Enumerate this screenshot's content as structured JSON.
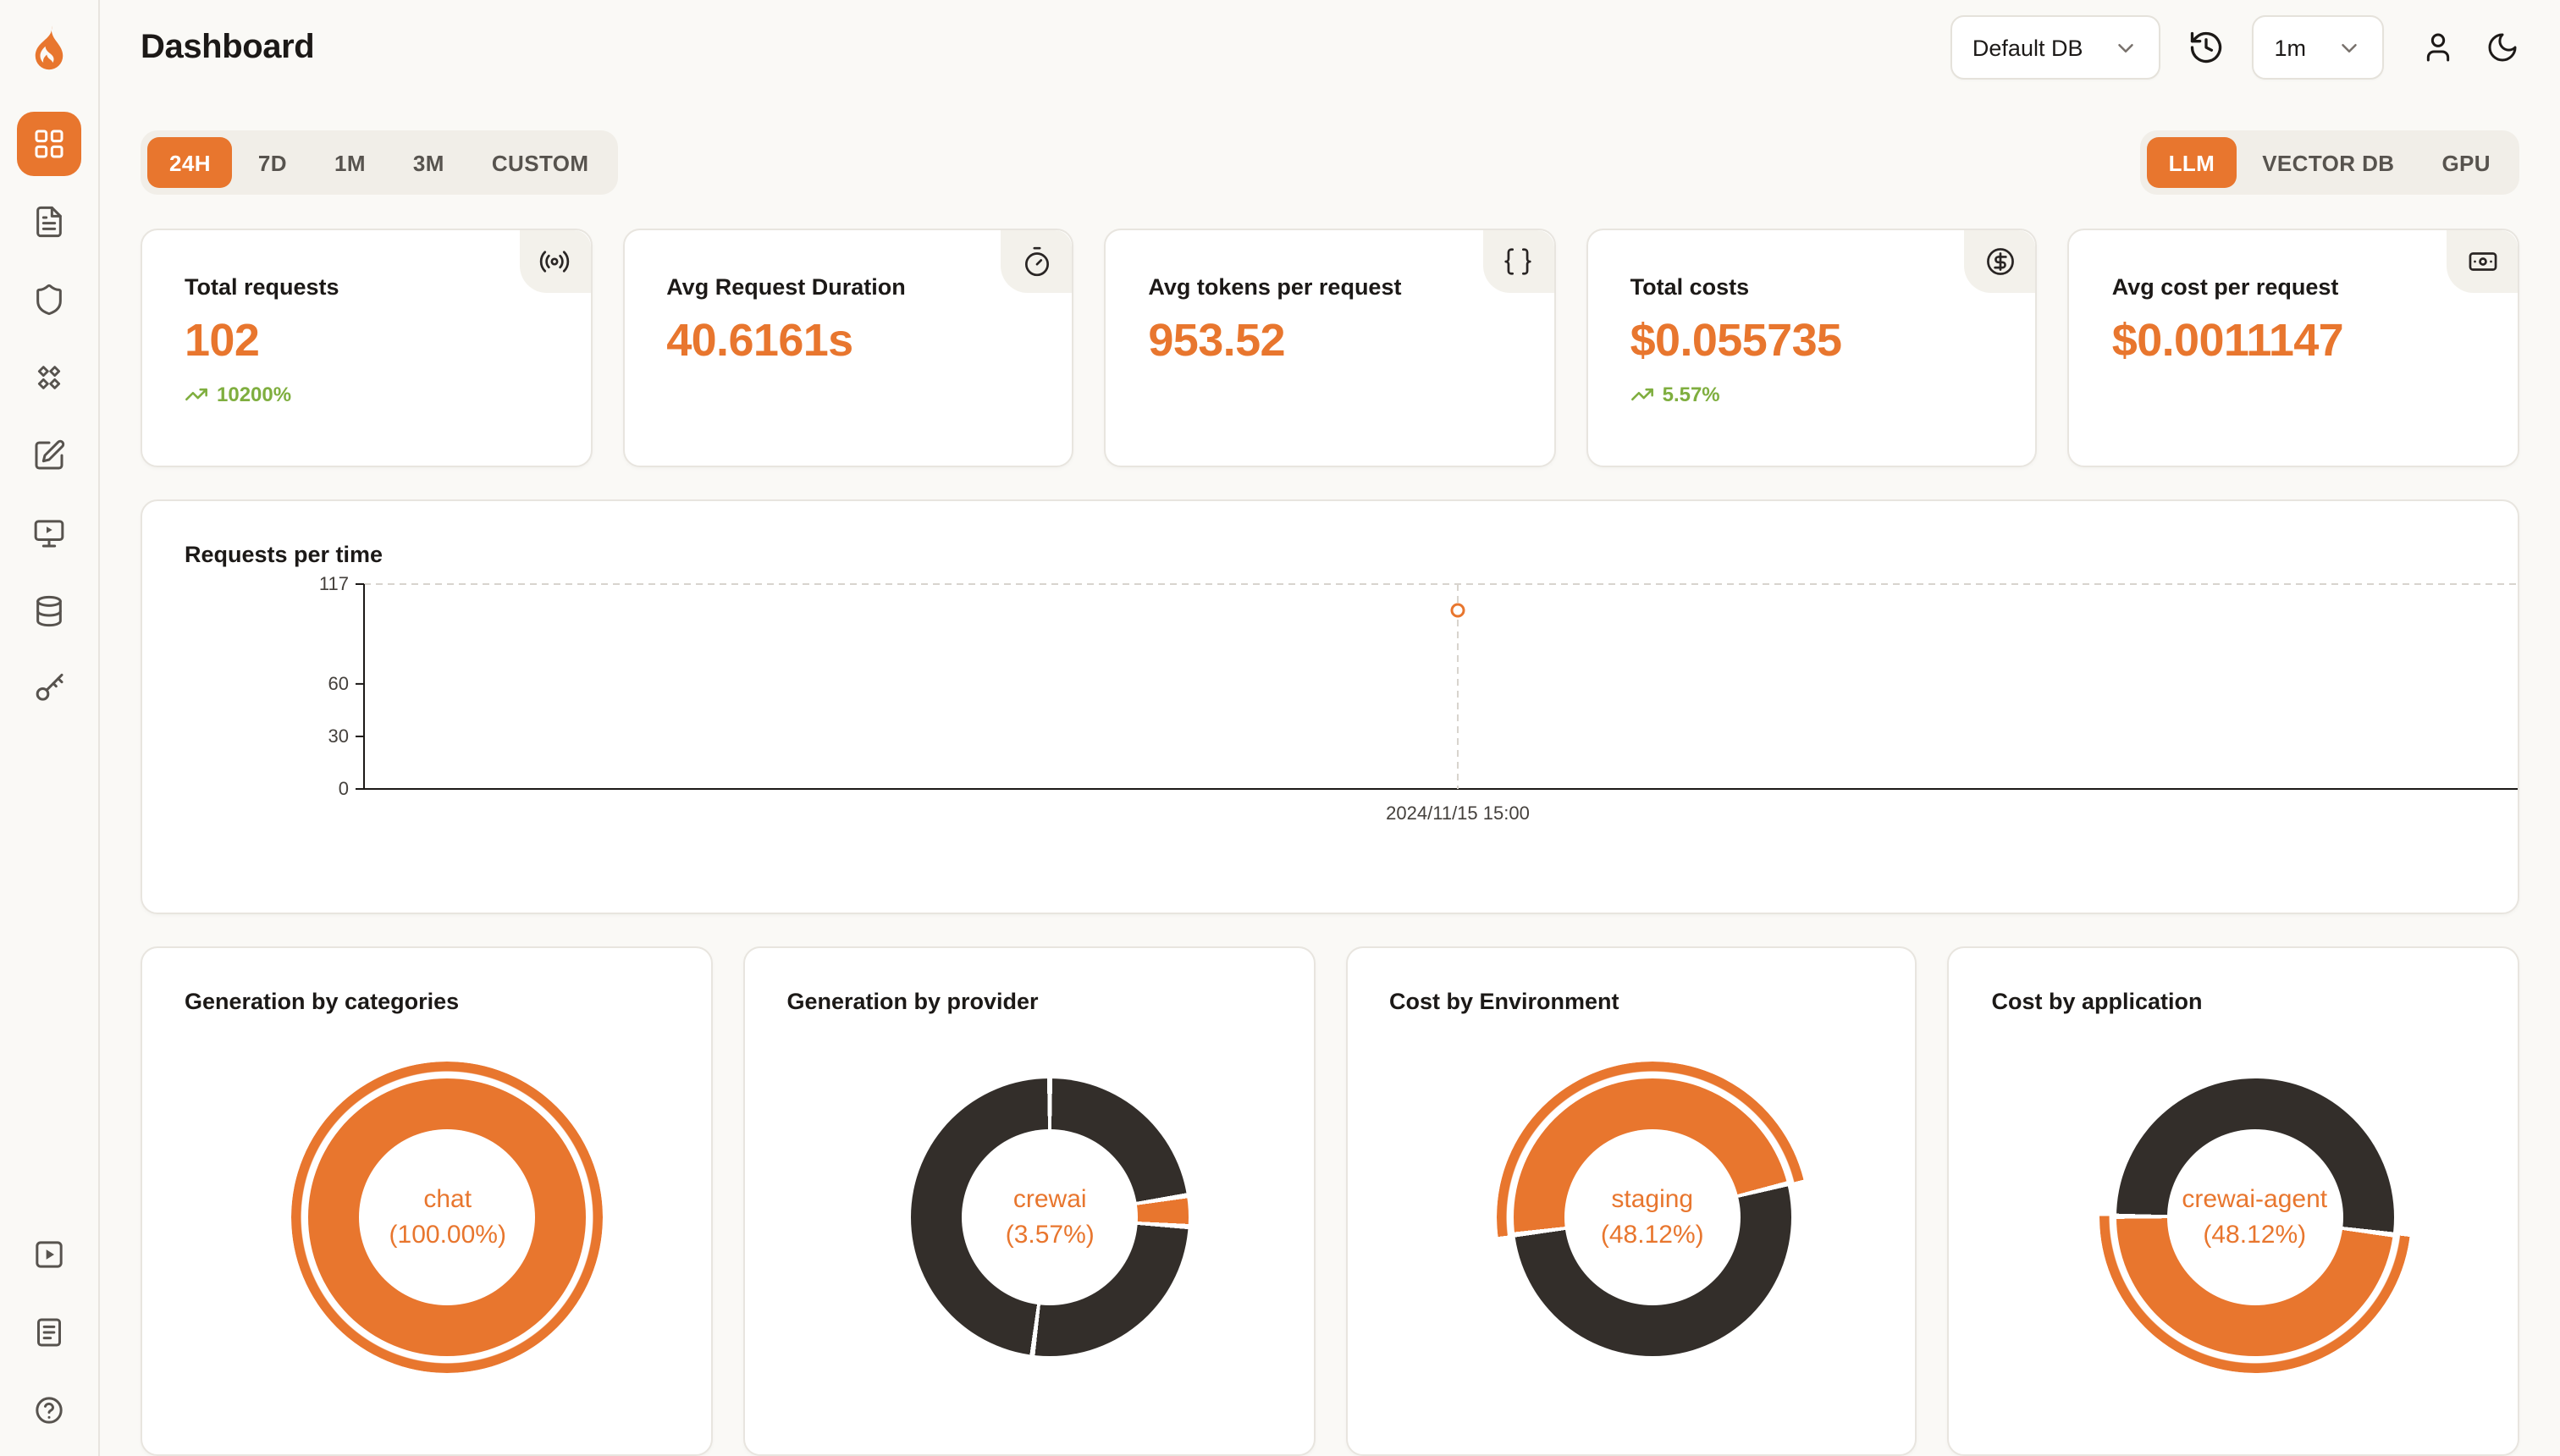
{
  "colors": {
    "accent": "#E8762E",
    "dark_segment": "#332E2A",
    "positive": "#7FAE3F",
    "axis": "#1C1917",
    "grid_dashed": "#D8D4CE",
    "muted_text": "#44403C"
  },
  "sidebar": {
    "items": [
      {
        "icon": "dashboard-icon",
        "active": true
      },
      {
        "icon": "requests-icon",
        "active": false
      },
      {
        "icon": "exceptions-icon",
        "active": false
      },
      {
        "icon": "vault-icon",
        "active": false
      },
      {
        "icon": "prompt-hub-icon",
        "active": false
      },
      {
        "icon": "openground-icon",
        "active": false
      },
      {
        "icon": "databases-icon",
        "active": false
      },
      {
        "icon": "api-keys-icon",
        "active": false
      }
    ],
    "footer_items": [
      {
        "icon": "getting-started-icon"
      },
      {
        "icon": "documentation-icon"
      },
      {
        "icon": "support-icon"
      }
    ]
  },
  "header": {
    "title": "Dashboard",
    "database_select": "Default DB",
    "interval_select": "1m"
  },
  "filters": {
    "time_ranges": [
      "24H",
      "7D",
      "1M",
      "3M",
      "CUSTOM"
    ],
    "active_time_range": "24H",
    "sources": [
      "LLM",
      "VECTOR DB",
      "GPU"
    ],
    "active_source": "LLM"
  },
  "stats": [
    {
      "label": "Total requests",
      "value": "102",
      "delta": "10200%",
      "icon": "radio-icon"
    },
    {
      "label": "Avg Request Duration",
      "value": "40.6161s",
      "icon": "timer-icon"
    },
    {
      "label": "Avg tokens per request",
      "value": "953.52",
      "icon": "braces-icon"
    },
    {
      "label": "Total costs",
      "value": "$0.055735",
      "delta": "5.57%",
      "icon": "circle-dollar-icon"
    },
    {
      "label": "Avg cost per request",
      "value": "$0.0011147",
      "icon": "banknote-icon"
    }
  ],
  "chart_data": [
    {
      "type": "line",
      "title": "Requests per time",
      "x": [
        "2024/11/15 15:00"
      ],
      "y": [
        102
      ],
      "ylim": [
        0,
        117
      ],
      "yticks": [
        0,
        30,
        60,
        117
      ],
      "grid": "dashed-frame",
      "point_style": "hollow-circle"
    },
    {
      "type": "pie",
      "title": "Generation by categories",
      "center": {
        "line1": "chat",
        "line2": "(100.00%)"
      },
      "rotation_pct": 0,
      "segments": [
        {
          "name": "chat",
          "pct": 100.0,
          "color": "#E8762E"
        }
      ],
      "highlight": {
        "start_pct": 0,
        "end_pct": 100
      }
    },
    {
      "type": "pie",
      "title": "Generation by provider",
      "center": {
        "line1": "crewai",
        "line2": "(3.57%)"
      },
      "rotation_pct": 0,
      "segments": [
        {
          "name": "",
          "pct": 22.5,
          "color": "#332E2A"
        },
        {
          "name": "crewai",
          "pct": 3.57,
          "color": "#E8762E"
        },
        {
          "name": "",
          "pct": 25.93,
          "color": "#332E2A"
        },
        {
          "name": "",
          "pct": 48.0,
          "color": "#332E2A"
        }
      ],
      "highlight": null
    },
    {
      "type": "pie",
      "title": "Cost by Environment",
      "center": {
        "line1": "staging",
        "line2": "(48.12%)"
      },
      "rotation_pct": 73,
      "segments": [
        {
          "name": "staging",
          "pct": 48.12,
          "color": "#E8762E"
        },
        {
          "name": "",
          "pct": 51.88,
          "color": "#332E2A"
        }
      ],
      "highlight": {
        "start_pct": 0,
        "end_pct": 48.12
      }
    },
    {
      "type": "pie",
      "title": "Cost by application",
      "center": {
        "line1": "crewai-agent",
        "line2": "(48.12%)"
      },
      "rotation_pct": 27,
      "segments": [
        {
          "name": "crewai-agent",
          "pct": 48.12,
          "color": "#E8762E"
        },
        {
          "name": "",
          "pct": 51.88,
          "color": "#332E2A"
        }
      ],
      "highlight": {
        "start_pct": 0,
        "end_pct": 48.12
      }
    }
  ]
}
